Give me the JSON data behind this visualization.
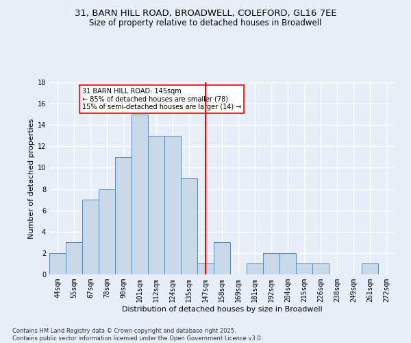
{
  "title_line1": "31, BARN HILL ROAD, BROADWELL, COLEFORD, GL16 7EE",
  "title_line2": "Size of property relative to detached houses in Broadwell",
  "xlabel": "Distribution of detached houses by size in Broadwell",
  "ylabel": "Number of detached properties",
  "footnote": "Contains HM Land Registry data © Crown copyright and database right 2025.\nContains public sector information licensed under the Open Government Licence v3.0.",
  "bin_labels": [
    "44sqm",
    "55sqm",
    "67sqm",
    "78sqm",
    "90sqm",
    "101sqm",
    "112sqm",
    "124sqm",
    "135sqm",
    "147sqm",
    "158sqm",
    "169sqm",
    "181sqm",
    "192sqm",
    "204sqm",
    "215sqm",
    "226sqm",
    "238sqm",
    "249sqm",
    "261sqm",
    "272sqm"
  ],
  "bar_values": [
    2,
    3,
    7,
    8,
    11,
    15,
    13,
    13,
    9,
    1,
    3,
    0,
    1,
    2,
    2,
    1,
    1,
    0,
    0,
    1,
    0
  ],
  "bar_color": "#c8d8e8",
  "bar_edge_color": "#5a8ab5",
  "property_bin_index": 9,
  "vline_color": "red",
  "annotation_text": "31 BARN HILL ROAD: 145sqm\n← 85% of detached houses are smaller (78)\n15% of semi-detached houses are larger (14) →",
  "annotation_box_color": "white",
  "annotation_box_edge_color": "red",
  "ylim": [
    0,
    18
  ],
  "yticks": [
    0,
    2,
    4,
    6,
    8,
    10,
    12,
    14,
    16,
    18
  ],
  "background_color": "#e8eef8",
  "plot_background_color": "#e8eef8",
  "grid_color": "#ffffff",
  "title_fontsize": 9.5,
  "subtitle_fontsize": 8.5,
  "axis_label_fontsize": 8,
  "tick_fontsize": 7,
  "annotation_fontsize": 7,
  "footnote_fontsize": 6
}
